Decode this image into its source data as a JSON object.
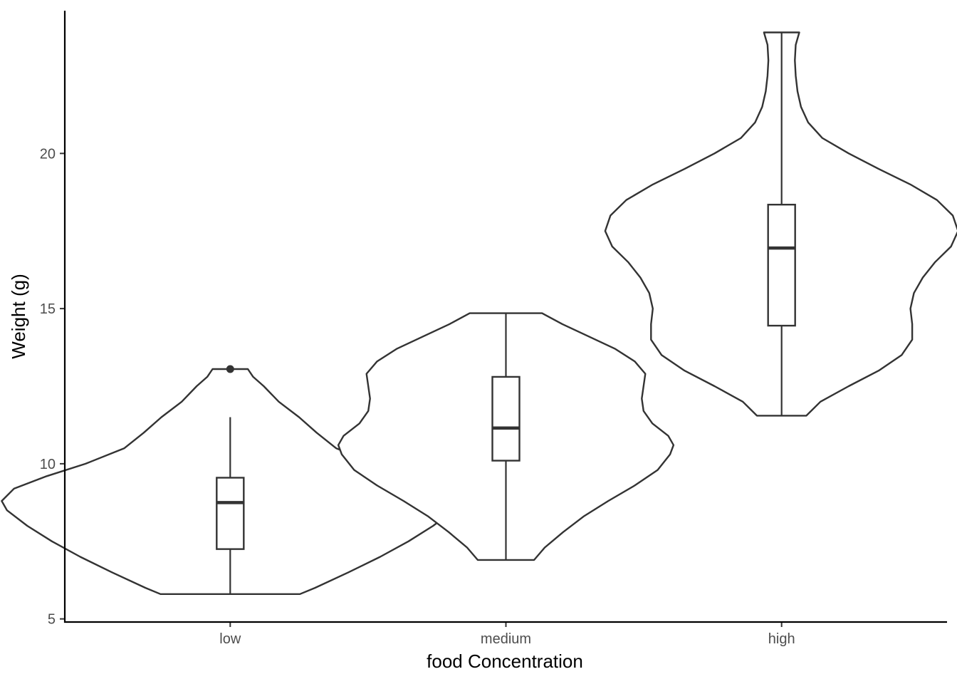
{
  "chart_data": {
    "type": "violin",
    "xlabel": "food Concentration",
    "ylabel": "Weight (g)",
    "categories": [
      "low",
      "medium",
      "high"
    ],
    "ylim": [
      4.9,
      24.6
    ],
    "yticks": [
      5,
      10,
      15,
      20
    ],
    "grid": false,
    "legend": "none",
    "colors": {
      "line": "#333333",
      "axis": "#000000",
      "tick_text": "#4d4d4d",
      "fill": "#ffffff"
    },
    "groups": [
      {
        "category": "low",
        "box": {
          "lower_whisker": 5.8,
          "q1": 7.25,
          "median": 8.75,
          "q3": 9.55,
          "upper_whisker": 11.5
        },
        "outliers": [
          13.05
        ],
        "violin": {
          "y": [
            5.8,
            6.0,
            6.5,
            7.0,
            7.5,
            8.0,
            8.5,
            8.8,
            9.2,
            9.6,
            10.0,
            10.5,
            11.0,
            11.5,
            12.0,
            12.5,
            12.8,
            13.05
          ],
          "width": [
            0.79,
            0.96,
            1.34,
            1.7,
            2.02,
            2.3,
            2.53,
            2.59,
            2.45,
            2.08,
            1.64,
            1.2,
            0.98,
            0.78,
            0.55,
            0.38,
            0.26,
            0.2
          ]
        }
      },
      {
        "category": "medium",
        "box": {
          "lower_whisker": 6.9,
          "q1": 10.1,
          "median": 11.15,
          "q3": 12.8,
          "upper_whisker": 14.85
        },
        "outliers": [],
        "violin": {
          "y": [
            6.9,
            7.3,
            7.8,
            8.3,
            8.8,
            9.3,
            9.8,
            10.3,
            10.6,
            10.9,
            11.3,
            11.7,
            12.1,
            12.5,
            12.9,
            13.3,
            13.7,
            14.1,
            14.5,
            14.85
          ],
          "width": [
            0.32,
            0.44,
            0.65,
            0.88,
            1.16,
            1.46,
            1.72,
            1.86,
            1.9,
            1.84,
            1.66,
            1.56,
            1.54,
            1.56,
            1.58,
            1.46,
            1.24,
            0.94,
            0.64,
            0.41
          ]
        }
      },
      {
        "category": "high",
        "box": {
          "lower_whisker": 11.55,
          "q1": 14.45,
          "median": 16.95,
          "q3": 18.35,
          "upper_whisker": 23.9
        },
        "outliers": [],
        "violin": {
          "y": [
            11.55,
            12.0,
            12.5,
            13.0,
            13.5,
            14.0,
            14.5,
            15.0,
            15.5,
            16.0,
            16.5,
            17.0,
            17.5,
            18.0,
            18.5,
            19.0,
            19.5,
            20.0,
            20.5,
            21.0,
            21.5,
            22.0,
            22.5,
            23.0,
            23.5,
            23.9
          ],
          "width": [
            0.28,
            0.44,
            0.76,
            1.1,
            1.36,
            1.48,
            1.48,
            1.46,
            1.5,
            1.6,
            1.74,
            1.92,
            2.0,
            1.94,
            1.76,
            1.46,
            1.1,
            0.76,
            0.46,
            0.3,
            0.22,
            0.18,
            0.16,
            0.15,
            0.16,
            0.2
          ]
        }
      }
    ]
  }
}
